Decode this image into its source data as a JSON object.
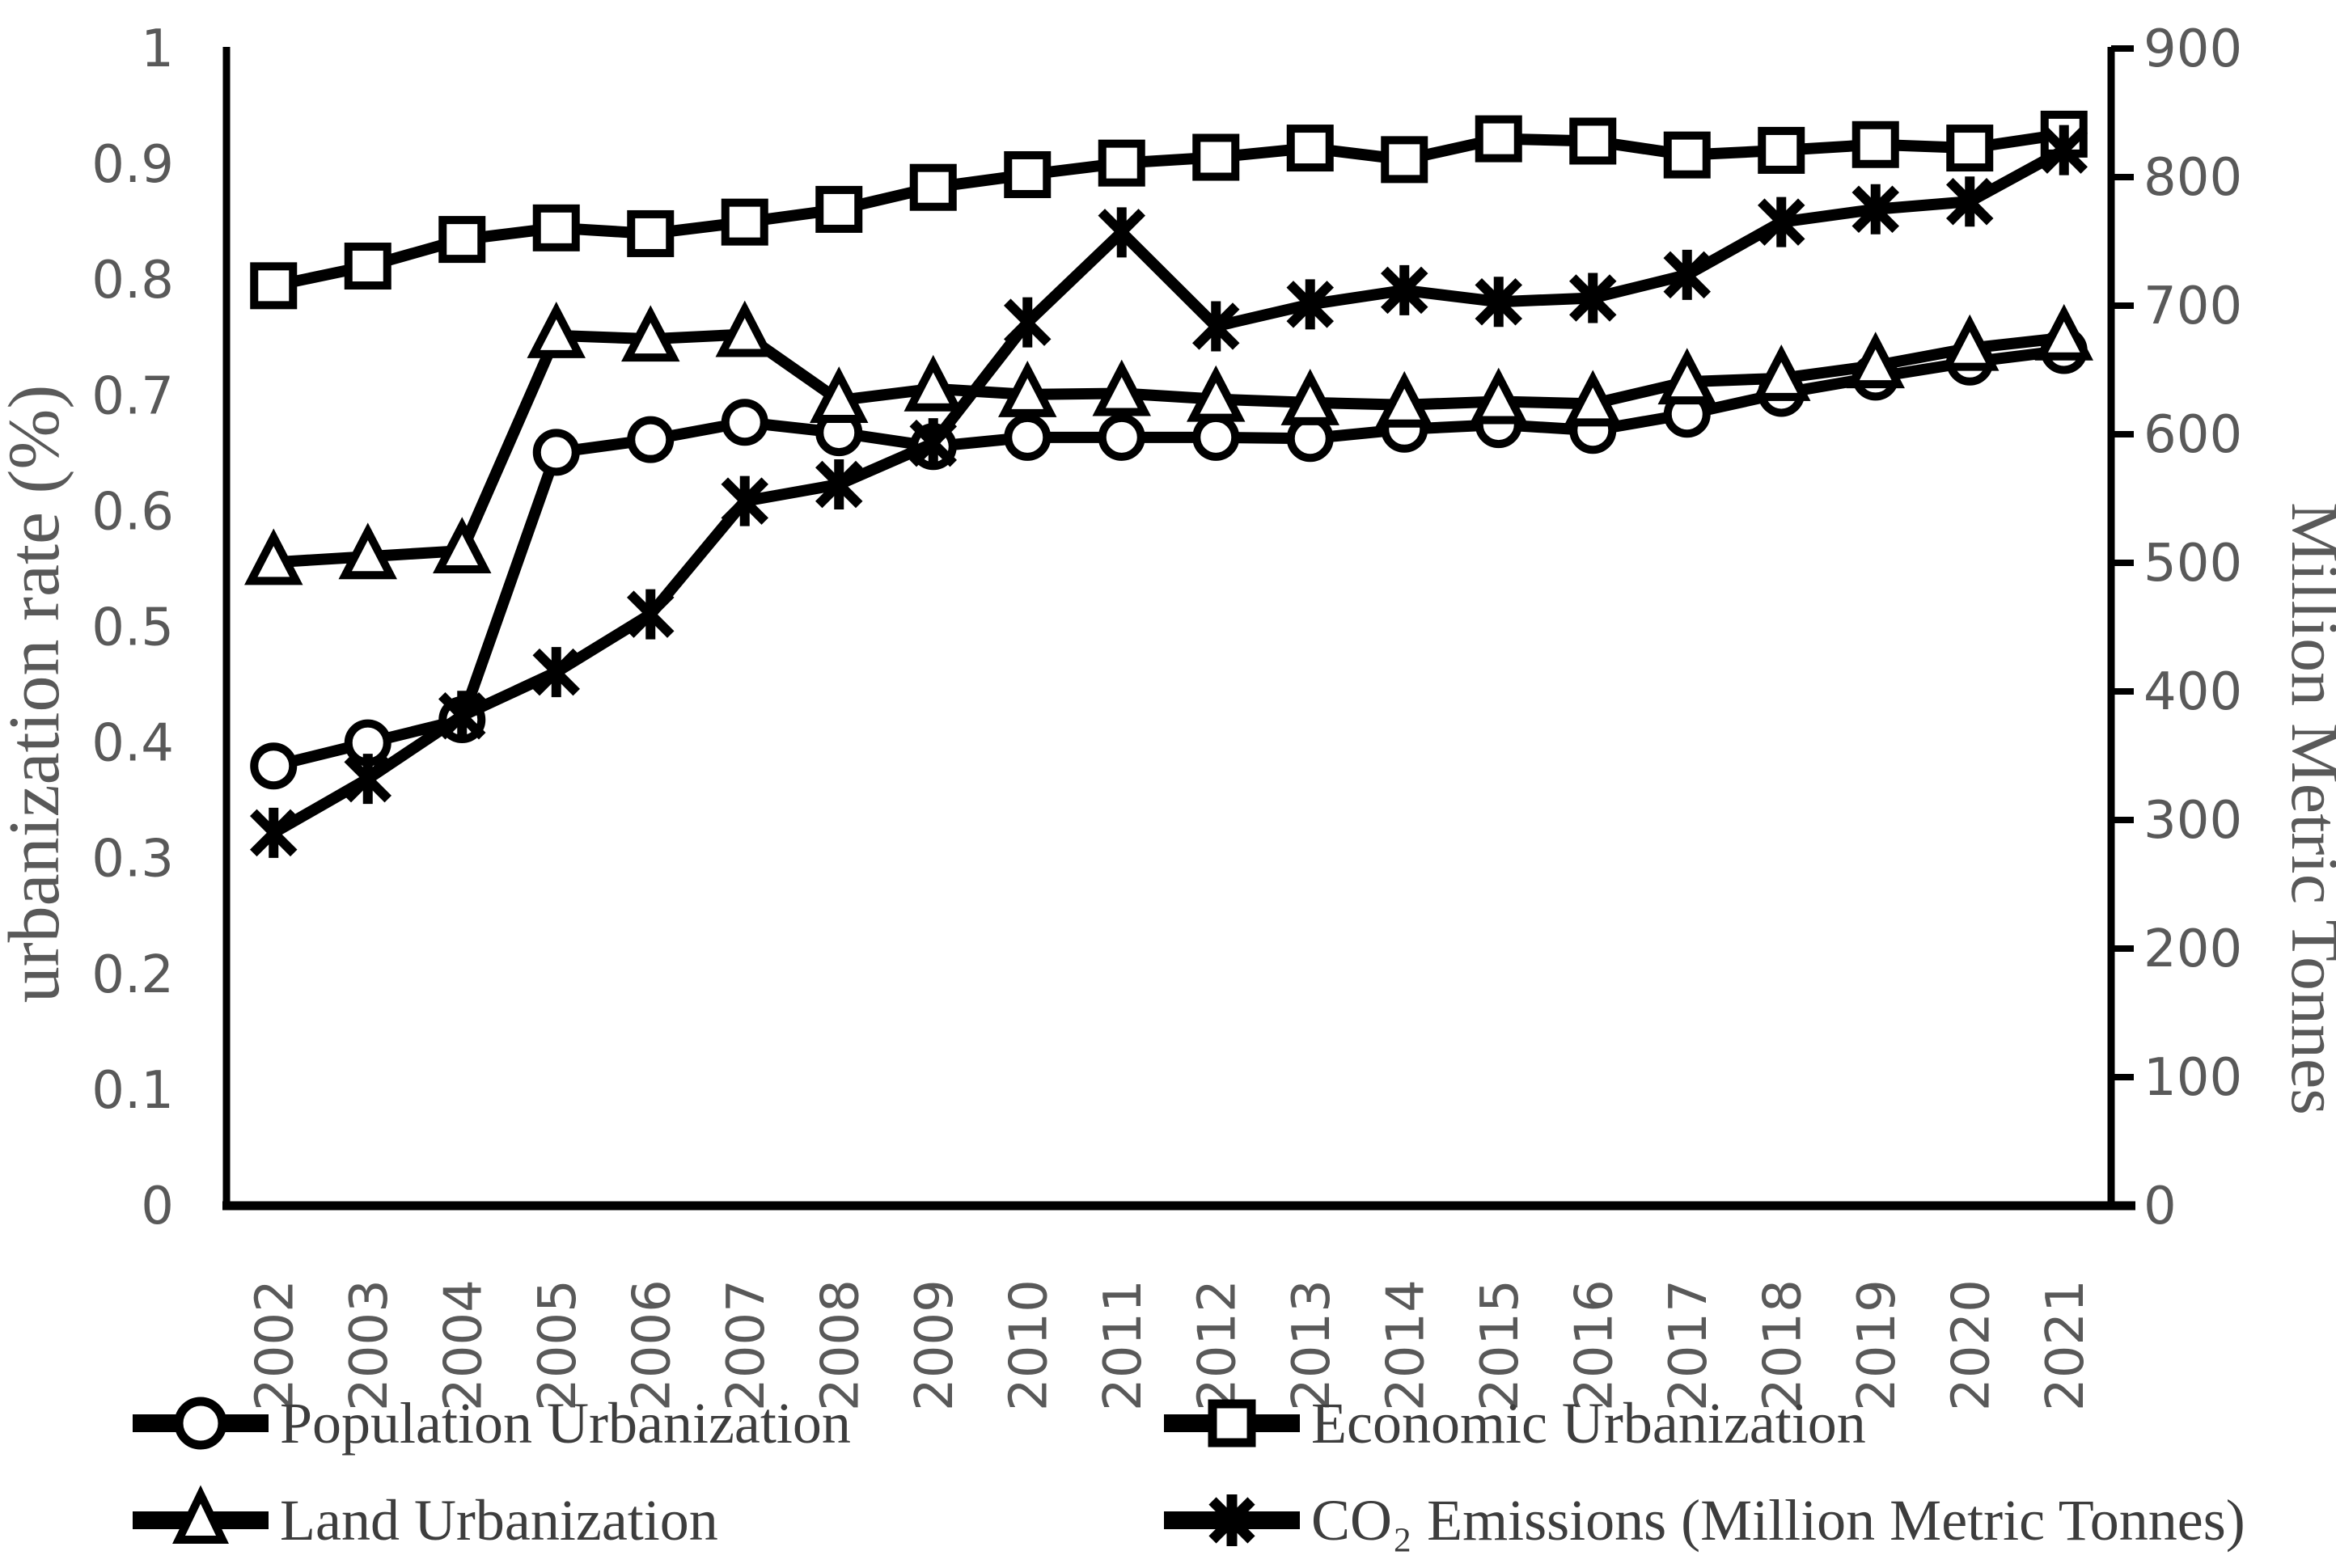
{
  "chart_data": {
    "type": "line",
    "title": "",
    "x_categories": [
      "2002",
      "2003",
      "2004",
      "2005",
      "2006",
      "2007",
      "2008",
      "2009",
      "2010",
      "2011",
      "2012",
      "2013",
      "2014",
      "2015",
      "2016",
      "2017",
      "2018",
      "2019",
      "2020",
      "2021"
    ],
    "x_tick_rotation_degrees": -90,
    "grid": false,
    "legend_position": "bottom-two-columns",
    "axes": {
      "left": {
        "title": "urbanization rate (%)",
        "min": 0,
        "max": 1,
        "tick_step": 0.1,
        "tick_labels": [
          "1",
          "0.9",
          "0.8",
          "0.7",
          "0.6",
          "0.5",
          "0.4",
          "0.3",
          "0.2",
          "0.1",
          "0"
        ]
      },
      "right": {
        "title": "Million Metric Tonnes",
        "min": 0,
        "max": 900,
        "tick_step": 100,
        "tick_labels": [
          "900",
          "800",
          "700",
          "600",
          "500",
          "400",
          "300",
          "200",
          "100",
          "0"
        ]
      }
    },
    "series": [
      {
        "name": "Population Urbanization",
        "marker": "circle",
        "axis": "left",
        "values": [
          0.38,
          0.4,
          0.42,
          0.651,
          0.662,
          0.677,
          0.668,
          0.656,
          0.664,
          0.664,
          0.664,
          0.663,
          0.671,
          0.675,
          0.67,
          0.684,
          0.702,
          0.716,
          0.729,
          0.739
        ]
      },
      {
        "name": "Economic Urbanization",
        "marker": "square",
        "axis": "left",
        "values": [
          0.795,
          0.812,
          0.835,
          0.845,
          0.84,
          0.85,
          0.861,
          0.88,
          0.891,
          0.901,
          0.906,
          0.914,
          0.904,
          0.922,
          0.92,
          0.908,
          0.912,
          0.917,
          0.914,
          0.926
        ]
      },
      {
        "name": "Land Urbanization",
        "marker": "triangle",
        "axis": "left",
        "values": [
          0.556,
          0.561,
          0.566,
          0.752,
          0.749,
          0.753,
          0.696,
          0.706,
          0.701,
          0.702,
          0.697,
          0.694,
          0.692,
          0.695,
          0.693,
          0.712,
          0.715,
          0.726,
          0.741,
          0.75
        ]
      },
      {
        "name": "CO₂ Emissions (Million Metric Tonnes)",
        "marker": "asterisk",
        "axis": "right",
        "values": [
          290,
          332,
          381,
          415,
          460,
          548,
          561,
          593,
          687,
          757,
          684,
          701,
          712,
          703,
          706,
          724,
          765,
          775,
          781,
          821
        ]
      }
    ],
    "style": {
      "series_color": "#000000",
      "axis_line_color": "#000000",
      "tick_label_color": "#595959",
      "axis_title_color": "#595959",
      "legend_text_color": "#3d3d3d",
      "background": "#ffffff"
    }
  }
}
